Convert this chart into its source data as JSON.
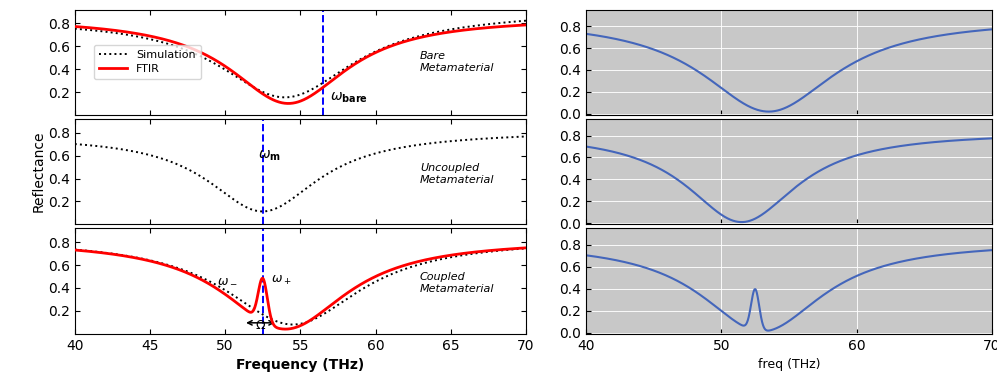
{
  "freq_range": [
    40,
    70
  ],
  "dashed_line_bare": 56.5,
  "dashed_line_coupled": 52.5,
  "line_right_color": "#4466bb",
  "ylabel": "Reflectance",
  "xlabel_left": "Frequency (THz)",
  "xlabel_right": "freq (THz)"
}
